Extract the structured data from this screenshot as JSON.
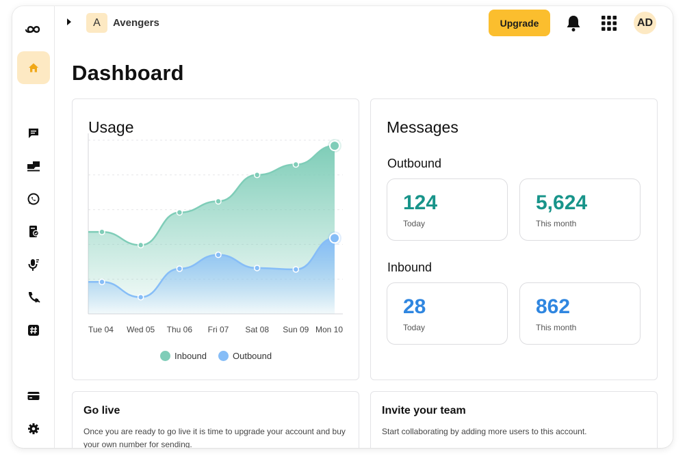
{
  "workspace": {
    "avatar_letter": "A",
    "name": "Avengers"
  },
  "topbar": {
    "upgrade_label": "Upgrade",
    "user_initials": "AD"
  },
  "page": {
    "title": "Dashboard"
  },
  "sidebar": {
    "items": [
      {
        "name": "home",
        "icon": "home-icon",
        "active": true
      },
      {
        "name": "messages",
        "icon": "chat-icon"
      },
      {
        "name": "campaigns",
        "icon": "inbox-icon"
      },
      {
        "name": "whatsapp",
        "icon": "whatsapp-icon"
      },
      {
        "name": "contacts",
        "icon": "contact-book-icon"
      },
      {
        "name": "voice",
        "icon": "microphone-icon"
      },
      {
        "name": "calls",
        "icon": "phone-icon"
      },
      {
        "name": "numbers",
        "icon": "hashtag-icon"
      },
      {
        "name": "billing",
        "icon": "credit-card-icon"
      },
      {
        "name": "settings",
        "icon": "gear-icon"
      }
    ]
  },
  "usage": {
    "title": "Usage",
    "legend": {
      "inbound": "Inbound",
      "outbound": "Outbound"
    }
  },
  "chart_data": {
    "type": "area",
    "title": "Usage",
    "categories": [
      "Tue 04",
      "Wed 05",
      "Thu 06",
      "Fri 07",
      "Sat 08",
      "Sun 09",
      "Mon 10"
    ],
    "x": [
      "Tue 04",
      "Wed 05",
      "Thu 06",
      "Fri 07",
      "Sat 08",
      "Sun 09",
      "Mon 10"
    ],
    "series": [
      {
        "name": "Inbound",
        "color": "#7fcdb8",
        "values": [
          118,
          99,
          146,
          162,
          200,
          215,
          242
        ]
      },
      {
        "name": "Outbound",
        "color": "#86bdf7",
        "values": [
          46,
          24,
          65,
          85,
          66,
          64,
          109
        ]
      }
    ],
    "ylim": [
      0,
      250
    ],
    "grid": true,
    "legend_position": "bottom"
  },
  "messages": {
    "title": "Messages",
    "outbound": {
      "heading": "Outbound",
      "today_value": "124",
      "today_label": "Today",
      "month_value": "5,624",
      "month_label": "This month"
    },
    "inbound": {
      "heading": "Inbound",
      "today_value": "28",
      "today_label": "Today",
      "month_value": "862",
      "month_label": "This month"
    },
    "colors": {
      "outbound": "#18948a",
      "inbound": "#2f86e0"
    }
  },
  "go_live": {
    "title": "Go live",
    "text": "Once you are ready to go live it is time to upgrade your account and buy your own number for sending."
  },
  "invite": {
    "title": "Invite your team",
    "text": "Start collaborating by adding more users to this account."
  }
}
